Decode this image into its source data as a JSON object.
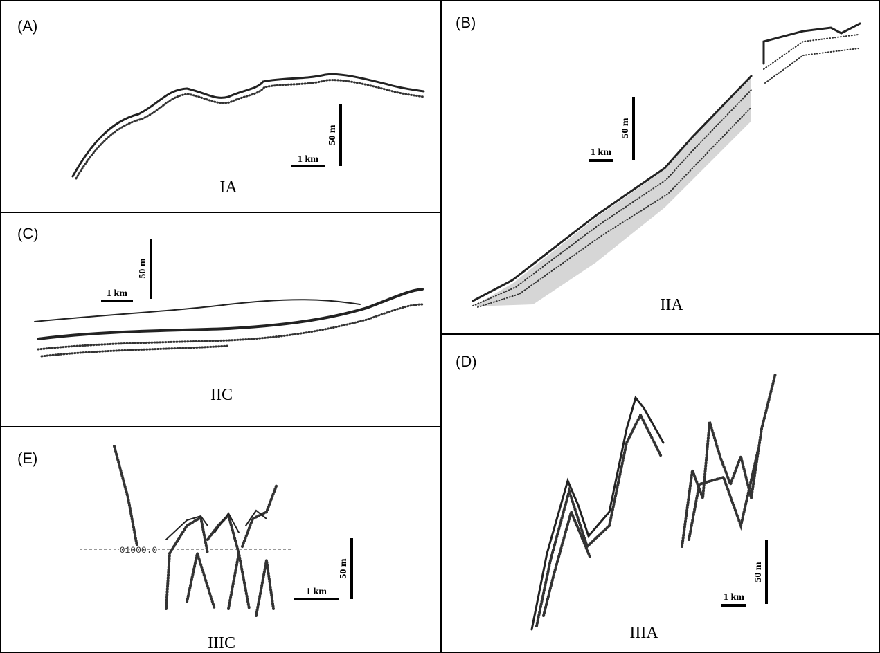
{
  "panels": [
    {
      "label": "(A)",
      "caption": "IA",
      "scale_km": "1 km",
      "scale_m": "50 m"
    },
    {
      "label": "(B)",
      "caption": "IIA",
      "scale_km": "1 km",
      "scale_m": "50 m"
    },
    {
      "label": "(C)",
      "caption": "IIC",
      "scale_km": "1 km",
      "scale_m": "50 m"
    },
    {
      "label": "(D)",
      "caption": "IIIA",
      "scale_km": "1 km",
      "scale_m": "50 m"
    },
    {
      "label": "(E)",
      "caption": "IIIC",
      "scale_km": "1 km",
      "scale_m": "50 m",
      "depth_marker": "01000.0"
    }
  ]
}
